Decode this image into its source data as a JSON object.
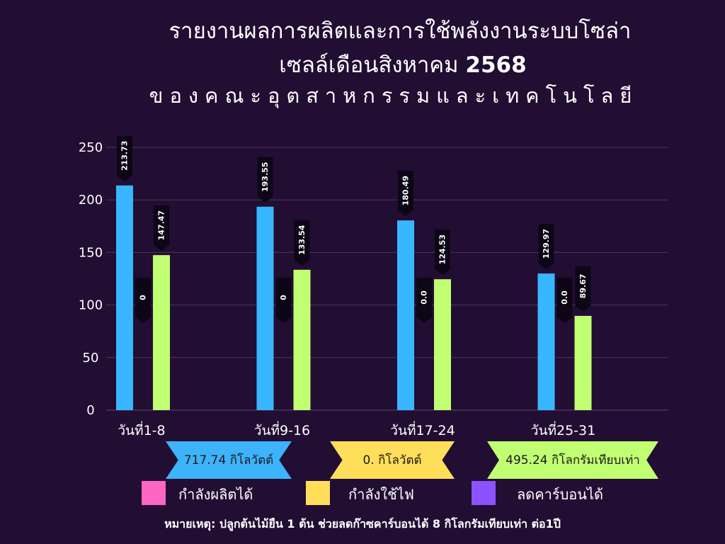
{
  "title_line1": "รายงานผลการผลิตและการใช้พลังงานระบบโซล่า",
  "title_line2_text": "เซลล์เดือนสิงหาคม",
  "title_line2_year": "2568",
  "subtitle": "ของคณะอุตสาหกรรมและเทคโนโลยี",
  "chart_data": {
    "type": "bar",
    "categories": [
      "วันที่1-8",
      "วันที่9-16",
      "วันที่17-24",
      "วันที่25-31"
    ],
    "series": [
      {
        "values": [
          213.73,
          193.55,
          180.49,
          129.97
        ],
        "labels": [
          "213.73",
          "193.55",
          "180.49",
          "129.97"
        ],
        "color": "#38b6ff"
      },
      {
        "values": [
          0,
          0,
          0,
          0
        ],
        "labels": [
          "0",
          "0",
          "0.0",
          "0.0"
        ],
        "color": "#2a0f3f"
      },
      {
        "values": [
          147.47,
          133.54,
          124.53,
          89.67
        ],
        "labels": [
          "147.47",
          "133.54",
          "124.53",
          "89.67"
        ],
        "color": "#c1ff72"
      }
    ],
    "ylim": [
      0,
      250
    ],
    "yticks": [
      0,
      50,
      100,
      150,
      200,
      250
    ],
    "grid": true,
    "label_bg_color": "#0d0616"
  },
  "banners": [
    {
      "text": "717.74 กิโลวัตต์",
      "color": "#3cb3fb"
    },
    {
      "text": "0. กิโลวัตต์",
      "color": "#ffde59"
    },
    {
      "text": "495.24 กิโลกรัมเทียบเท่า",
      "color": "#c1ff72"
    }
  ],
  "legend": [
    {
      "label": "กำลังผลิตได้",
      "color": "#ff66c4"
    },
    {
      "label": "กำลังใช้ไฟ",
      "color": "#ffde59"
    },
    {
      "label": "ลดคาร์บอนได้",
      "color": "#8c52ff"
    }
  ],
  "note": "หมายเหตุ: ปลูกต้นไม้ยืน 1 ต้น ช่วยลดก๊าซคาร์บอนได้ 8 กิโลกรัมเทียบเท่า ต่อ1ปี"
}
